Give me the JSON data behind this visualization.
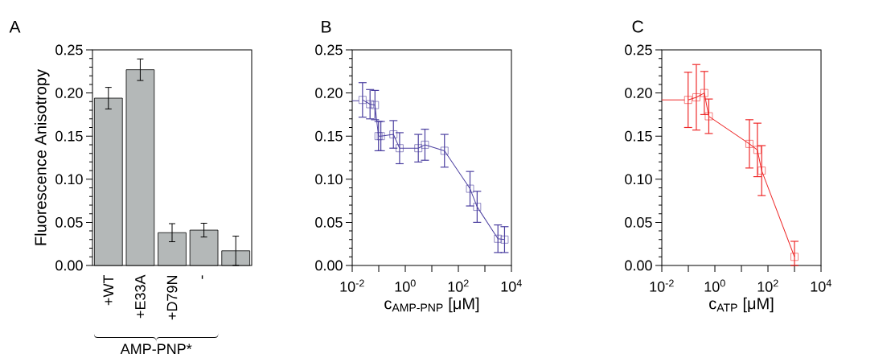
{
  "chart_data": [
    {
      "type": "bar",
      "title": "A",
      "ylabel": "Fluorescence Anisotropy",
      "categories": [
        "+WT",
        "+E33A",
        "+D79N",
        "-",
        null
      ],
      "values": [
        0.194,
        0.227,
        0.038,
        0.041,
        0.017
      ],
      "errors": [
        0.0125,
        0.0125,
        0.0105,
        0.008,
        0.017
      ],
      "color": "#b4b8b8",
      "ylim": [
        0,
        0.25
      ],
      "yticks": [
        {
          "value": 0,
          "label": "0.00"
        },
        {
          "value": 0.05,
          "label": "0.05"
        },
        {
          "value": 0.1,
          "label": "0.10"
        },
        {
          "value": 0.15,
          "label": "0.15"
        },
        {
          "value": 0.2,
          "label": "0.20"
        },
        {
          "value": 0.25,
          "label": "0.25"
        }
      ],
      "annotations": [
        "AMP-PNP*"
      ]
    },
    {
      "type": "line",
      "title": "B",
      "xlabel": "c$_{AMP-PNP}$ [μM]",
      "log": "x",
      "marker": "square",
      "series": [
        {
          "color": "#4b3fa0",
          "marker": "none",
          "x": [
            0.01,
            0.018
          ],
          "values": [
            0.191,
            0.191
          ]
        },
        {
          "color": "#4b3fa0",
          "x": [
            0.0245,
            0.047,
            0.072,
            0.098,
            0.12,
            0.357,
            0.61,
            3.1,
            5.5,
            30,
            275,
            510,
            3100,
            5500
          ],
          "values": [
            0.192,
            0.187,
            0.186,
            0.15,
            0.15,
            0.152,
            0.136,
            0.136,
            0.14,
            0.133,
            0.089,
            0.068,
            0.031,
            0.03
          ],
          "errors": [
            0.02,
            0.017,
            0.017,
            0.017,
            0.017,
            0.016,
            0.018,
            0.016,
            0.018,
            0.019,
            0.02,
            0.018,
            0.016,
            0.015
          ]
        }
      ],
      "xlim": [
        0.01,
        10000
      ],
      "xticks": [
        {
          "value": 0.01,
          "label": "10$^{-2}$"
        },
        {
          "value": 0.1,
          "label": null
        },
        {
          "value": 1,
          "label": "10$^{0}$"
        },
        {
          "value": 10,
          "label": null
        },
        {
          "value": 100,
          "label": "10$^{2}$"
        },
        {
          "value": 1000,
          "label": null
        },
        {
          "value": 10000,
          "label": "10$^{4}$"
        }
      ],
      "ylim": [
        0,
        0.25
      ],
      "yticks": [
        {
          "value": 0,
          "label": "0.00"
        },
        {
          "value": 0.05,
          "label": "0.05"
        },
        {
          "value": 0.1,
          "label": "0.10"
        },
        {
          "value": 0.15,
          "label": "0.15"
        },
        {
          "value": 0.2,
          "label": "0.20"
        },
        {
          "value": 0.25,
          "label": "0.25"
        }
      ]
    },
    {
      "type": "line",
      "title": "C",
      "xlabel": "c$_{ATP}$ [μM]",
      "log": "x",
      "marker": "square",
      "series": [
        {
          "color": "#ee2a2a",
          "marker": "none",
          "x": [
            0.01,
            0.072
          ],
          "values": [
            0.192,
            0.192
          ]
        },
        {
          "color": "#ee2a2a",
          "x": [
            0.098,
            0.2,
            0.4,
            0.59,
            20,
            40,
            58,
            1000
          ],
          "values": [
            0.192,
            0.195,
            0.2,
            0.173,
            0.141,
            0.134,
            0.11,
            0.01
          ],
          "errors": [
            0.032,
            0.038,
            0.025,
            0.02,
            0.028,
            0.031,
            0.029,
            [
              0,
              0.028
            ]
          ]
        }
      ],
      "xlim": [
        0.01,
        10000
      ],
      "xticks": [
        {
          "value": 0.01,
          "label": "10$^{-2}$"
        },
        {
          "value": 0.1,
          "label": null
        },
        {
          "value": 1,
          "label": "10$^{0}$"
        },
        {
          "value": 10,
          "label": null
        },
        {
          "value": 100,
          "label": "10$^{2}$"
        },
        {
          "value": 1000,
          "label": null
        },
        {
          "value": 10000,
          "label": "10$^{4}$"
        }
      ],
      "ylim": [
        0,
        0.25
      ],
      "yticks": [
        {
          "value": 0,
          "label": "0.00"
        },
        {
          "value": 0.05,
          "label": "0.05"
        },
        {
          "value": 0.1,
          "label": "0.10"
        },
        {
          "value": 0.15,
          "label": "0.15"
        },
        {
          "value": 0.2,
          "label": "0.20"
        },
        {
          "value": 0.25,
          "label": "0.25"
        }
      ]
    }
  ]
}
